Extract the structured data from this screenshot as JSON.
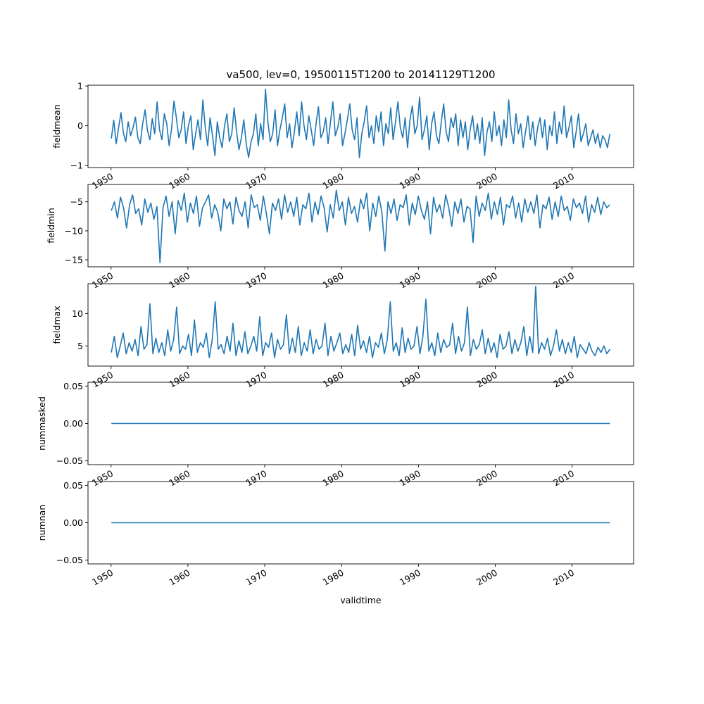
{
  "chart_data": {
    "type": "line",
    "title": "va500, lev=0, 19500115T1200 to 20141129T1200",
    "xlabel": "validtime",
    "x_range": [
      "1950-01-15",
      "2014-11-29"
    ],
    "x_limits": [
      1947.0,
      2018.0
    ],
    "x_ticks": [
      1950,
      1960,
      1970,
      1980,
      1990,
      2000,
      2010
    ],
    "x_tick_labels": [
      "1950",
      "1960",
      "1970",
      "1980",
      "1990",
      "2000",
      "2010"
    ],
    "grid": false,
    "line_color": "#1f77b4",
    "panels": [
      {
        "ylabel": "fieldmean",
        "ylim": [
          -1.05,
          1.02
        ],
        "yticks": [
          -1,
          0,
          1
        ],
        "ytick_labels": [
          "−1",
          "0",
          "1"
        ],
        "sample_every_months": 3,
        "values": [
          -0.32,
          0.14,
          -0.45,
          -0.05,
          0.33,
          -0.18,
          -0.4,
          0.1,
          -0.25,
          -0.05,
          0.22,
          -0.3,
          -0.45,
          0.05,
          0.4,
          -0.12,
          -0.35,
          0.18,
          -0.2,
          0.6,
          -0.1,
          -0.35,
          0.3,
          0.05,
          -0.5,
          -0.08,
          0.62,
          0.2,
          -0.3,
          -0.1,
          0.35,
          -0.45,
          0.0,
          0.25,
          -0.6,
          -0.2,
          0.15,
          -0.35,
          0.65,
          -0.05,
          -0.5,
          0.2,
          -0.25,
          -0.75,
          0.1,
          -0.3,
          -0.55,
          0.0,
          0.3,
          -0.4,
          -0.2,
          0.45,
          -0.15,
          -0.6,
          -0.3,
          0.15,
          -0.45,
          -0.8,
          -0.4,
          -0.2,
          0.3,
          -0.5,
          0.05,
          -0.35,
          0.92,
          0.1,
          -0.4,
          -0.2,
          0.4,
          -0.5,
          -0.1,
          0.2,
          0.55,
          -0.3,
          0.05,
          -0.55,
          -0.15,
          0.35,
          -0.25,
          0.6,
          0.0,
          -0.35,
          0.25,
          -0.1,
          -0.5,
          0.05,
          0.48,
          -0.3,
          -0.15,
          0.2,
          -0.45,
          0.1,
          0.6,
          -0.25,
          -0.05,
          0.3,
          -0.5,
          -0.2,
          0.15,
          0.55,
          -0.1,
          -0.35,
          0.2,
          -0.8,
          -0.2,
          0.1,
          0.5,
          -0.3,
          0.0,
          -0.45,
          0.25,
          -0.15,
          0.35,
          -0.5,
          0.05,
          -0.2,
          0.45,
          -0.35,
          0.1,
          0.6,
          -0.05,
          -0.3,
          0.2,
          -0.55,
          0.15,
          0.5,
          -0.2,
          0.0,
          0.72,
          -0.35,
          -0.1,
          0.25,
          -0.6,
          0.05,
          0.35,
          -0.25,
          -0.45,
          0.1,
          0.55,
          -0.15,
          -0.4,
          0.2,
          -0.05,
          0.3,
          -0.5,
          0.15,
          -0.3,
          0.1,
          -0.6,
          -0.1,
          0.25,
          -0.35,
          0.05,
          -0.45,
          0.2,
          -0.75,
          -0.15,
          0.1,
          -0.4,
          0.35,
          -0.25,
          0.0,
          -0.5,
          0.15,
          -0.3,
          0.65,
          -0.1,
          -0.45,
          0.3,
          -0.2,
          0.05,
          -0.55,
          -0.15,
          0.25,
          -0.35,
          0.1,
          -0.5,
          -0.05,
          0.2,
          -0.3,
          0.15,
          -0.6,
          0.0,
          -0.25,
          0.35,
          -0.45,
          0.1,
          -0.2,
          0.5,
          -0.3,
          -0.05,
          0.25,
          -0.55,
          -0.15,
          0.3,
          -0.4,
          -0.2,
          0.05,
          -0.5,
          -0.3,
          -0.1,
          -0.45,
          -0.2,
          -0.55,
          -0.25,
          -0.35,
          -0.55,
          -0.2
        ]
      },
      {
        "ylabel": "fieldmin",
        "ylim": [
          -16.2,
          -2.0
        ],
        "yticks": [
          -15,
          -10,
          -5
        ],
        "ytick_labels": [
          "−15",
          "−10",
          "−5"
        ],
        "sample_every_months": 3,
        "values": [
          -6.5,
          -5.0,
          -7.8,
          -4.2,
          -6.0,
          -9.5,
          -5.5,
          -3.8,
          -7.0,
          -6.2,
          -9.0,
          -4.5,
          -6.8,
          -5.2,
          -8.0,
          -5.8,
          -15.5,
          -6.0,
          -4.0,
          -7.5,
          -5.0,
          -10.5,
          -4.8,
          -6.5,
          -3.5,
          -8.5,
          -5.2,
          -7.0,
          -4.0,
          -9.2,
          -6.0,
          -5.0,
          -3.8,
          -7.8,
          -5.5,
          -6.8,
          -10.0,
          -4.5,
          -6.2,
          -5.0,
          -8.8,
          -4.2,
          -6.5,
          -7.5,
          -5.0,
          -9.5,
          -3.8,
          -6.0,
          -5.5,
          -8.2,
          -4.0,
          -7.0,
          -10.5,
          -5.2,
          -6.5,
          -4.5,
          -8.0,
          -3.8,
          -6.8,
          -5.0,
          -7.5,
          -4.2,
          -9.0,
          -5.5,
          -6.2,
          -3.5,
          -8.5,
          -5.0,
          -7.2,
          -4.0,
          -6.0,
          -10.2,
          -5.5,
          -7.8,
          -3.0,
          -6.5,
          -5.0,
          -9.0,
          -4.2,
          -7.0,
          -5.8,
          -8.5,
          -4.5,
          -6.2,
          -3.5,
          -10.0,
          -5.2,
          -7.5,
          -4.0,
          -6.8,
          -13.5,
          -5.0,
          -7.0,
          -4.5,
          -8.2,
          -5.5,
          -6.0,
          -3.8,
          -9.0,
          -5.2,
          -7.2,
          -4.0,
          -6.5,
          -8.0,
          -5.0,
          -10.5,
          -4.2,
          -6.8,
          -5.5,
          -7.8,
          -3.8,
          -6.0,
          -9.2,
          -5.0,
          -7.0,
          -4.5,
          -8.5,
          -5.8,
          -6.2,
          -12.0,
          -4.0,
          -7.5,
          -5.2,
          -6.5,
          -3.5,
          -8.0,
          -5.0,
          -7.2,
          -4.2,
          -9.0,
          -5.5,
          -6.0,
          -4.0,
          -7.8,
          -5.2,
          -8.5,
          -4.5,
          -6.8,
          -5.0,
          -7.0,
          -3.8,
          -9.5,
          -5.5,
          -6.2,
          -4.2,
          -8.0,
          -5.0,
          -7.5,
          -4.0,
          -6.5,
          -5.8,
          -8.2,
          -4.5,
          -6.0,
          -5.2,
          -7.0,
          -4.0,
          -8.5,
          -5.5,
          -6.8,
          -4.2,
          -7.2,
          -5.0,
          -6.0,
          -5.5
        ]
      },
      {
        "ylabel": "fieldmax",
        "ylim": [
          1.9,
          14.6
        ],
        "yticks": [
          5,
          10
        ],
        "ytick_labels": [
          "5",
          "10"
        ],
        "sample_every_months": 3,
        "values": [
          4.0,
          6.5,
          3.2,
          5.0,
          7.0,
          3.8,
          5.5,
          4.2,
          6.0,
          3.5,
          8.0,
          4.5,
          5.2,
          11.5,
          3.8,
          6.2,
          4.0,
          5.5,
          3.5,
          7.5,
          4.2,
          6.0,
          11.0,
          3.8,
          5.0,
          4.5,
          6.8,
          3.5,
          9.0,
          4.0,
          5.5,
          4.8,
          7.0,
          3.2,
          6.0,
          11.8,
          4.5,
          5.2,
          3.8,
          6.5,
          4.2,
          8.5,
          3.5,
          5.8,
          4.0,
          7.2,
          3.8,
          5.0,
          6.5,
          4.2,
          9.5,
          3.5,
          5.5,
          4.8,
          7.0,
          3.2,
          6.0,
          4.5,
          5.2,
          9.8,
          3.8,
          6.2,
          4.0,
          8.0,
          3.5,
          5.5,
          4.2,
          7.5,
          3.8,
          6.0,
          4.5,
          5.0,
          8.5,
          3.5,
          6.5,
          4.2,
          5.5,
          7.0,
          3.8,
          5.2,
          4.0,
          6.8,
          3.5,
          8.2,
          4.5,
          5.8,
          4.0,
          6.5,
          3.2,
          5.5,
          4.8,
          7.0,
          3.8,
          6.0,
          11.8,
          4.2,
          5.5,
          3.5,
          7.8,
          4.0,
          6.2,
          4.5,
          5.0,
          8.0,
          3.8,
          6.5,
          12.2,
          4.2,
          5.5,
          3.5,
          7.0,
          4.0,
          6.0,
          4.8,
          5.2,
          8.5,
          3.8,
          6.5,
          4.2,
          5.5,
          11.0,
          3.5,
          6.0,
          4.5,
          5.2,
          7.5,
          3.8,
          6.2,
          4.0,
          5.5,
          3.2,
          6.8,
          4.5,
          5.0,
          7.2,
          3.8,
          6.0,
          4.2,
          5.5,
          8.0,
          3.5,
          6.5,
          4.0,
          14.2,
          3.8,
          5.5,
          4.5,
          6.2,
          3.5,
          5.0,
          7.5,
          4.2,
          6.0,
          3.8,
          5.5,
          4.0,
          6.5,
          3.2,
          5.2,
          4.5,
          3.8,
          5.5,
          4.2,
          3.5,
          4.8,
          4.0,
          5.0,
          3.8,
          4.5
        ]
      },
      {
        "ylabel": "nummasked",
        "ylim": [
          -0.055,
          0.055
        ],
        "yticks": [
          -0.05,
          0.0,
          0.05
        ],
        "ytick_labels": [
          "−0.05",
          "0.00",
          "0.05"
        ],
        "sample_every_months": 3,
        "values": [
          0,
          0
        ]
      },
      {
        "ylabel": "numnan",
        "ylim": [
          -0.055,
          0.055
        ],
        "yticks": [
          -0.05,
          0.0,
          0.05
        ],
        "ytick_labels": [
          "−0.05",
          "0.00",
          "0.05"
        ],
        "sample_every_months": 3,
        "values": [
          0,
          0
        ]
      }
    ]
  }
}
